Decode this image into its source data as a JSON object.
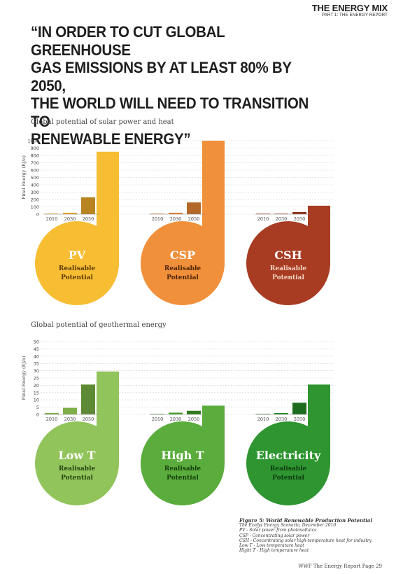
{
  "header": {
    "title": "THE ENERGY MIX",
    "subtitle": "PART 1: THE ENERGY REPORT"
  },
  "headline_lines": [
    "“IN ORDER TO CUT GLOBAL GREENHOUSE",
    "GAS EMISSIONS BY AT LEAST 80% BY 2050,",
    "THE WORLD WILL NEED TO TRANSITION TO",
    "RENEWABLE ENERGY”"
  ],
  "chart_data": [
    {
      "type": "bar",
      "title": "Global potential of solar power and heat",
      "ylabel": "Final Energy (EJ/a)",
      "ylim": [
        0,
        1000
      ],
      "yticks": [
        0,
        100,
        200,
        300,
        400,
        500,
        600,
        700,
        800,
        900,
        1000
      ],
      "categories": [
        "2010",
        "2030",
        "2050"
      ],
      "grid": true,
      "panels": [
        {
          "name": "PV",
          "label": "Realisable Potential",
          "values": [
            0,
            20,
            230
          ],
          "potential": 850,
          "color": "#f7bd33",
          "bar_color": "#e3a625",
          "dark_color": "#b88421",
          "label_color": "#5c3a0a"
        },
        {
          "name": "CSP",
          "label": "Realisable Potential",
          "values": [
            0,
            20,
            160
          ],
          "potential": 1000,
          "color": "#f1903b",
          "bar_color": "#dc7f31",
          "dark_color": "#b2692a",
          "label_color": "#4d2406"
        },
        {
          "name": "CSH",
          "label": "Realisable Potential",
          "values": [
            0,
            0,
            30
          ],
          "potential": 115,
          "color": "#a83c23",
          "bar_color": "#a83c23",
          "dark_color": "#8a3019",
          "label_color": "#f4d6c4"
        }
      ]
    },
    {
      "type": "bar",
      "title": "Global potential of geothermal energy",
      "ylabel": "Final Energy (EJ/a)",
      "ylim": [
        0,
        50
      ],
      "yticks": [
        0,
        5,
        10,
        15,
        20,
        25,
        30,
        35,
        40,
        45,
        50
      ],
      "categories": [
        "2010",
        "2030",
        "2050"
      ],
      "grid": true,
      "panels": [
        {
          "name": "Low T",
          "label": "Realisable Potential",
          "values": [
            1,
            4.5,
            20.5
          ],
          "potential": 29.5,
          "color": "#92c45c",
          "bar_color": "#7fb048",
          "dark_color": "#5f8a35",
          "label_color": "#24430b"
        },
        {
          "name": "High T",
          "label": "Realisable Potential",
          "values": [
            0,
            1.2,
            2.5
          ],
          "potential": 6,
          "color": "#5aad3c",
          "bar_color": "#479c2d",
          "dark_color": "#2f7a1e",
          "label_color": "#173d0c"
        },
        {
          "name": "Electricity",
          "label": "Realisable Potential",
          "values": [
            0,
            1,
            8
          ],
          "potential": 20.5,
          "color": "#2e9530",
          "bar_color": "#2b8a2d",
          "dark_color": "#1d6b1f",
          "label_color": "#0d3a0f"
        }
      ]
    }
  ],
  "caption": {
    "title": "Figure 5: World Renewable Production Potential",
    "lines": [
      "The Ecofys Energy Scenario, December 2010",
      "PV - Solar power from photovoltaics",
      "CSP - Concentrating solar power",
      "CSH - Concentrating solar high-temperature heat for industry",
      "Low T - Low temperature heat",
      "Hight T - High temperature heat"
    ]
  },
  "footer": "WWF The Energy Report   Page 29"
}
